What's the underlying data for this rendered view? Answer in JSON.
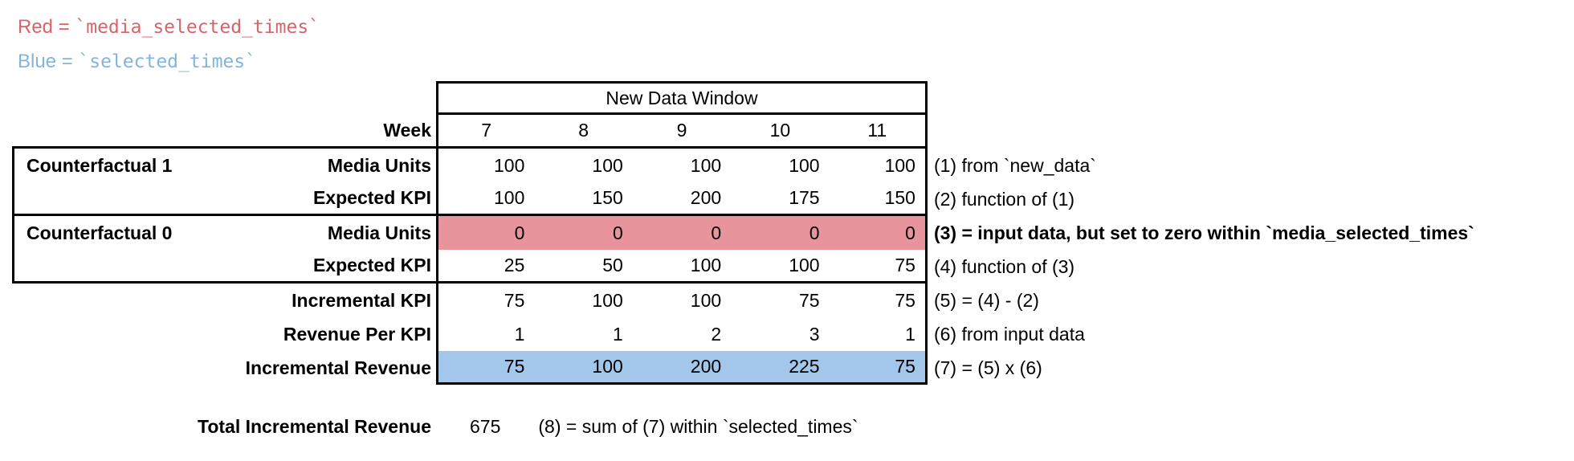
{
  "legend": {
    "red": {
      "term": "Red",
      "equals": " = ",
      "code": "`media_selected_times`"
    },
    "blue": {
      "term": "Blue",
      "equals": " = ",
      "code": "`selected_times`"
    }
  },
  "table": {
    "title": "New Data Window",
    "week_label": "Week",
    "weeks": [
      "7",
      "8",
      "9",
      "10",
      "11"
    ],
    "rows": [
      {
        "group": "Counterfactual 1",
        "label": "Media Units",
        "values": [
          "100",
          "100",
          "100",
          "100",
          "100"
        ],
        "annotation": "(1) from `new_data`"
      },
      {
        "group": "",
        "label": "Expected KPI",
        "values": [
          "100",
          "150",
          "200",
          "175",
          "150"
        ],
        "annotation": "(2) function of (1)"
      },
      {
        "group": "Counterfactual 0",
        "label": "Media Units",
        "values": [
          "0",
          "0",
          "0",
          "0",
          "0"
        ],
        "annotation": "(3) = input data, but set to zero within `media_selected_times`",
        "highlight": "red"
      },
      {
        "group": "",
        "label": "Expected KPI",
        "values": [
          "25",
          "50",
          "100",
          "100",
          "75"
        ],
        "annotation": "(4) function of (3)"
      },
      {
        "group": "",
        "label": "Incremental KPI",
        "values": [
          "75",
          "100",
          "100",
          "75",
          "75"
        ],
        "annotation": "(5) = (4) - (2)"
      },
      {
        "group": "",
        "label": "Revenue Per KPI",
        "values": [
          "1",
          "1",
          "2",
          "3",
          "1"
        ],
        "annotation": "(6) from input data"
      },
      {
        "group": "",
        "label": "Incremental Revenue",
        "values": [
          "75",
          "100",
          "200",
          "225",
          "75"
        ],
        "annotation": "(7) = (5) x (6)",
        "highlight": "blue"
      }
    ]
  },
  "total": {
    "label": "Total Incremental Revenue",
    "value": "675",
    "annotation": "(8) = sum of (7) within `selected_times`"
  },
  "colors": {
    "legend_red": "#d6646b",
    "legend_blue": "#82b4df",
    "red_fill": "#e8949c",
    "blue_fill": "#a2c7eb"
  }
}
